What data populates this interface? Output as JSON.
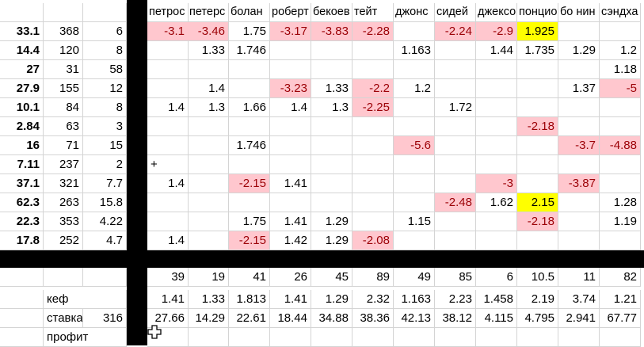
{
  "players": [
    "петрос",
    "петерс",
    "болан",
    "роберт",
    "бекоев",
    "тейт",
    "джонс",
    "сидей",
    "джексо",
    "понцио",
    "бо нин",
    "сэндха"
  ],
  "rows": [
    {
      "a": "33.1",
      "b": "368",
      "c": "6",
      "vals": [
        "-3.1",
        "-3.46",
        "1.75",
        "-3.17",
        "-3.83",
        "-2.28",
        "",
        "-2.24",
        "-2.9",
        "1.925",
        "",
        ""
      ]
    },
    {
      "a": "14.4",
      "b": "120",
      "c": "8",
      "vals": [
        "",
        "1.33",
        "1.746",
        "",
        "",
        "",
        "1.163",
        "",
        "1.44",
        "1.735",
        "1.29",
        "1.2"
      ]
    },
    {
      "a": "27",
      "b": "31",
      "c": "58",
      "vals": [
        "",
        "",
        "",
        "",
        "",
        "",
        "",
        "",
        "",
        "",
        "",
        "1.18"
      ]
    },
    {
      "a": "27.9",
      "b": "155",
      "c": "12",
      "vals": [
        "",
        "1.4",
        "",
        "-3.23",
        "1.33",
        "-2.2",
        "1.2",
        "",
        "",
        "",
        "1.37",
        "-5"
      ]
    },
    {
      "a": "10.1",
      "b": "84",
      "c": "8",
      "vals": [
        "1.4",
        "1.3",
        "1.66",
        "1.4",
        "1.3",
        "-2.25",
        "",
        "1.72",
        "",
        "",
        "",
        ""
      ]
    },
    {
      "a": "2.84",
      "b": "63",
      "c": "3",
      "vals": [
        "",
        "",
        "",
        "",
        "",
        "",
        "",
        "",
        "",
        "-2.18",
        "",
        ""
      ]
    },
    {
      "a": "16",
      "b": "71",
      "c": "15",
      "vals": [
        "",
        "",
        "1.746",
        "",
        "",
        "",
        "-5.6",
        "",
        "",
        "",
        "-3.7",
        "-4.88"
      ]
    },
    {
      "a": "7.11",
      "b": "237",
      "c": "2",
      "vals": [
        "+",
        "",
        "",
        "",
        "",
        "",
        "",
        "",
        "",
        "",
        "",
        ""
      ]
    },
    {
      "a": "37.1",
      "b": "321",
      "c": "7.7",
      "vals": [
        "1.4",
        "",
        "-2.15",
        "1.41",
        "",
        "",
        "",
        "",
        "-3",
        "",
        "-3.87",
        ""
      ]
    },
    {
      "a": "62.3",
      "b": "263",
      "c": "15.8",
      "vals": [
        "",
        "",
        "",
        "",
        "",
        "",
        "",
        "-2.48",
        "1.62",
        "2.15",
        "",
        "1.28"
      ]
    },
    {
      "a": "22.3",
      "b": "353",
      "c": "4.22",
      "vals": [
        "",
        "",
        "1.75",
        "1.41",
        "1.29",
        "",
        "1.15",
        "",
        "",
        "-2.18",
        "",
        "1.19"
      ]
    },
    {
      "a": "17.8",
      "b": "252",
      "c": "4.7",
      "vals": [
        "1.4",
        "",
        "-2.15",
        "1.42",
        "1.29",
        "-2.08",
        "",
        "",
        "",
        "",
        "",
        ""
      ]
    }
  ],
  "summary": {
    "counts": [
      "39",
      "19",
      "41",
      "26",
      "45",
      "89",
      "49",
      "85",
      "6",
      "10.5",
      "11",
      "82"
    ],
    "kef_label": "кеф",
    "kef": [
      "1.41",
      "1.33",
      "1.813",
      "1.41",
      "1.29",
      "2.32",
      "1.163",
      "2.23",
      "1.458",
      "2.19",
      "3.74",
      "1.21"
    ],
    "stake_label": "ставка",
    "stake_total": "316",
    "stake": [
      "27.66",
      "14.29",
      "22.61",
      "18.44",
      "34.88",
      "38.36",
      "42.13",
      "38.12",
      "4.115",
      "4.795",
      "2.941",
      "67.77"
    ],
    "profit_label": "профит"
  },
  "colors": {
    "negative_fill": "#ffc7ce",
    "negative_text": "#9c0006",
    "highlight": "#ffff00"
  },
  "icons": {
    "cursor": "cell-select-cross-icon"
  }
}
